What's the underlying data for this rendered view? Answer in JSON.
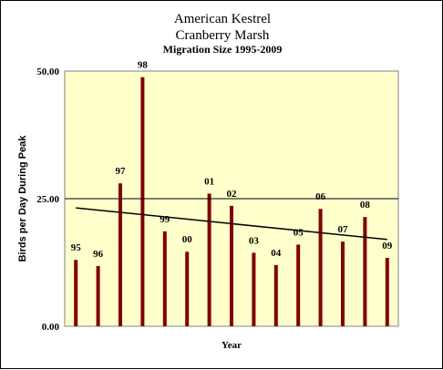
{
  "colors": {
    "plot_background": "#ffffcc",
    "bar": "#800000",
    "trend_line": "#000000",
    "gridline": "#000000"
  },
  "chart_data": {
    "type": "bar",
    "title_lines": [
      "American Kestrel",
      "Cranberry Marsh"
    ],
    "subtitle": "Migration Size 1995-2009",
    "xlabel": "Year",
    "ylabel": "Birds per Day During Peak",
    "ylim": [
      0,
      50
    ],
    "yticks": [
      "0.00",
      "25.00",
      "50.00"
    ],
    "grid": "horizontal at 25",
    "legend": "none",
    "categories": [
      "95",
      "96",
      "97",
      "98",
      "99",
      "00",
      "01",
      "02",
      "03",
      "04",
      "05",
      "06",
      "07",
      "08",
      "09"
    ],
    "values": [
      13.0,
      11.8,
      28.0,
      48.8,
      18.6,
      14.6,
      26.0,
      23.6,
      14.4,
      12.0,
      16.0,
      23.0,
      16.6,
      21.4,
      13.4
    ],
    "trendline": {
      "type": "linear",
      "start_value": 23.2,
      "end_value": 17.0
    }
  }
}
